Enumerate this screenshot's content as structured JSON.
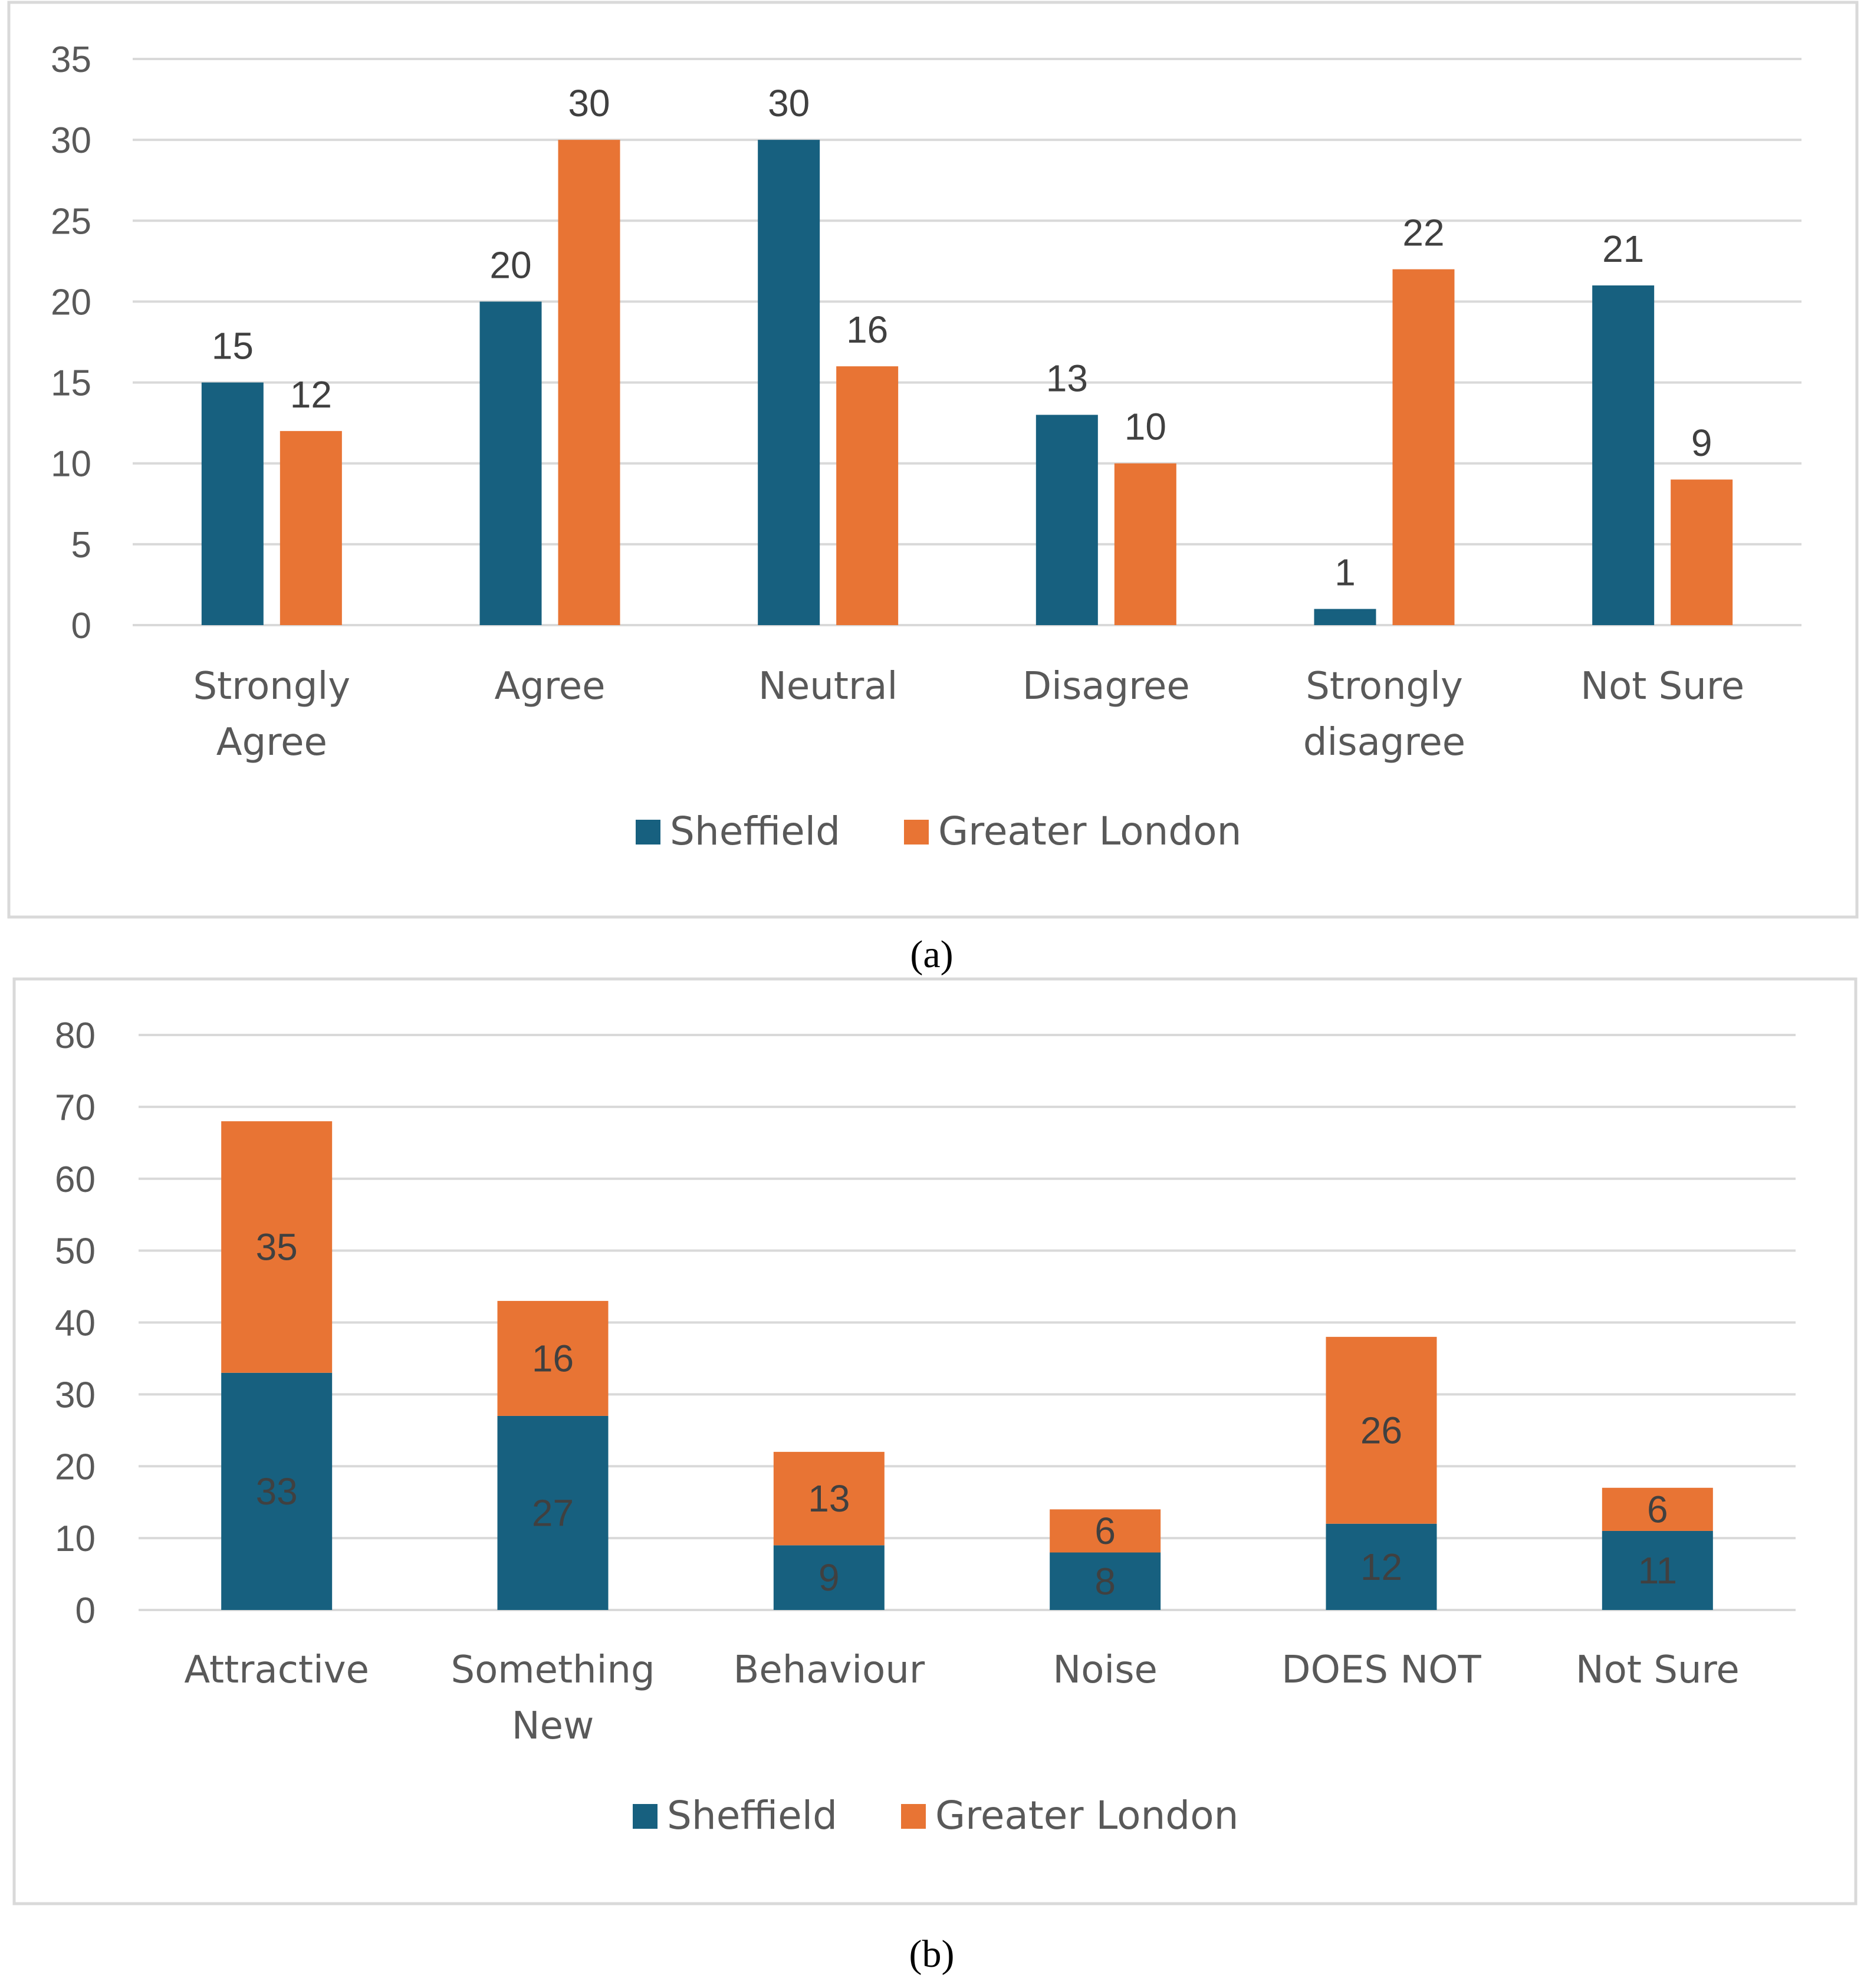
{
  "chart_data": [
    {
      "type": "bar",
      "panel": "a",
      "caption": "(a)",
      "categories": [
        [
          "Strongly",
          "Agree"
        ],
        [
          "Agree"
        ],
        [
          "Neutral"
        ],
        [
          "Disagree"
        ],
        [
          "Strongly",
          "disagree"
        ],
        [
          "Not Sure"
        ]
      ],
      "series": [
        {
          "name": "Sheffield",
          "color": "#17607f",
          "values": [
            15,
            20,
            30,
            13,
            1,
            21
          ]
        },
        {
          "name": "Greater London",
          "color": "#e87434",
          "values": [
            12,
            30,
            16,
            10,
            22,
            9
          ]
        }
      ],
      "ylim": [
        0,
        35
      ],
      "yticks": [
        0,
        5,
        10,
        15,
        20,
        25,
        30,
        35
      ],
      "grid": true,
      "legend": "bottom"
    },
    {
      "type": "bar",
      "stacked": true,
      "panel": "b",
      "caption": "(b)",
      "categories": [
        [
          "Attractive"
        ],
        [
          "Something",
          "New"
        ],
        [
          "Behaviour"
        ],
        [
          "Noise"
        ],
        [
          "DOES NOT"
        ],
        [
          "Not Sure"
        ]
      ],
      "series": [
        {
          "name": "Sheffield",
          "color": "#17607f",
          "values": [
            33,
            27,
            9,
            8,
            12,
            11
          ]
        },
        {
          "name": "Greater London",
          "color": "#e87434",
          "values": [
            35,
            16,
            13,
            6,
            26,
            6
          ]
        }
      ],
      "ylim": [
        0,
        80
      ],
      "yticks": [
        0,
        10,
        20,
        30,
        40,
        50,
        60,
        70,
        80
      ],
      "grid": true,
      "legend": "bottom"
    }
  ]
}
